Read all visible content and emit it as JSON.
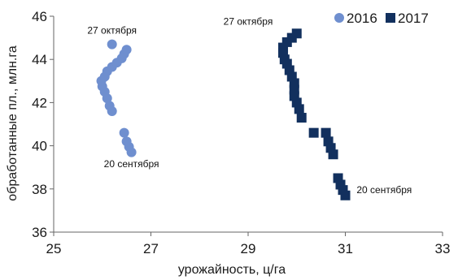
{
  "chart_data": {
    "type": "scatter",
    "xlabel": "урожайность, ц/га",
    "ylabel": "обработанные пл., млн.га",
    "xlim": [
      25,
      33
    ],
    "ylim": [
      36,
      46
    ],
    "x_ticks": [
      "25",
      "27",
      "29",
      "31",
      "33"
    ],
    "y_ticks": [
      "36",
      "38",
      "40",
      "42",
      "44",
      "46"
    ],
    "legend_position": "top-right",
    "grid": false,
    "series": [
      {
        "name": "2016",
        "marker": "circle",
        "color": "#6f8fcf",
        "points": [
          {
            "x": 26.6,
            "y": 39.7
          },
          {
            "x": 26.55,
            "y": 39.95
          },
          {
            "x": 26.5,
            "y": 40.2
          },
          {
            "x": 26.45,
            "y": 40.6
          },
          {
            "x": 26.2,
            "y": 41.6
          },
          {
            "x": 26.15,
            "y": 41.85
          },
          {
            "x": 26.1,
            "y": 42.2
          },
          {
            "x": 26.05,
            "y": 42.5
          },
          {
            "x": 26.0,
            "y": 42.75
          },
          {
            "x": 25.98,
            "y": 43.0
          },
          {
            "x": 26.05,
            "y": 43.2
          },
          {
            "x": 26.1,
            "y": 43.45
          },
          {
            "x": 26.2,
            "y": 43.65
          },
          {
            "x": 26.3,
            "y": 43.85
          },
          {
            "x": 26.4,
            "y": 44.05
          },
          {
            "x": 26.45,
            "y": 44.25
          },
          {
            "x": 26.5,
            "y": 44.45
          },
          {
            "x": 26.2,
            "y": 44.7
          }
        ]
      },
      {
        "name": "2017",
        "marker": "square",
        "color": "#12305e",
        "points": [
          {
            "x": 31.0,
            "y": 37.7
          },
          {
            "x": 30.95,
            "y": 37.95
          },
          {
            "x": 30.9,
            "y": 38.2
          },
          {
            "x": 30.85,
            "y": 38.5
          },
          {
            "x": 30.75,
            "y": 39.6
          },
          {
            "x": 30.7,
            "y": 39.9
          },
          {
            "x": 30.65,
            "y": 40.2
          },
          {
            "x": 30.6,
            "y": 40.6
          },
          {
            "x": 30.35,
            "y": 40.6
          },
          {
            "x": 30.1,
            "y": 41.3
          },
          {
            "x": 30.05,
            "y": 41.7
          },
          {
            "x": 30.0,
            "y": 42.0
          },
          {
            "x": 29.95,
            "y": 42.3
          },
          {
            "x": 29.95,
            "y": 42.6
          },
          {
            "x": 29.95,
            "y": 42.9
          },
          {
            "x": 29.9,
            "y": 43.2
          },
          {
            "x": 29.85,
            "y": 43.5
          },
          {
            "x": 29.8,
            "y": 43.8
          },
          {
            "x": 29.75,
            "y": 44.0
          },
          {
            "x": 29.72,
            "y": 44.3
          },
          {
            "x": 29.72,
            "y": 44.55
          },
          {
            "x": 29.8,
            "y": 44.8
          },
          {
            "x": 29.9,
            "y": 45.0
          },
          {
            "x": 30.0,
            "y": 45.2
          }
        ]
      }
    ],
    "annotations": [
      {
        "text": "27 октября",
        "series": "2016",
        "x": 26.2,
        "y": 45.2
      },
      {
        "text": "20 сентября",
        "series": "2016",
        "x": 26.6,
        "y": 39.0
      },
      {
        "text": "27 октября",
        "series": "2017",
        "x": 29.0,
        "y": 45.6
      },
      {
        "text": "20 сентября",
        "series": "2017",
        "x": 31.8,
        "y": 37.8
      }
    ]
  }
}
